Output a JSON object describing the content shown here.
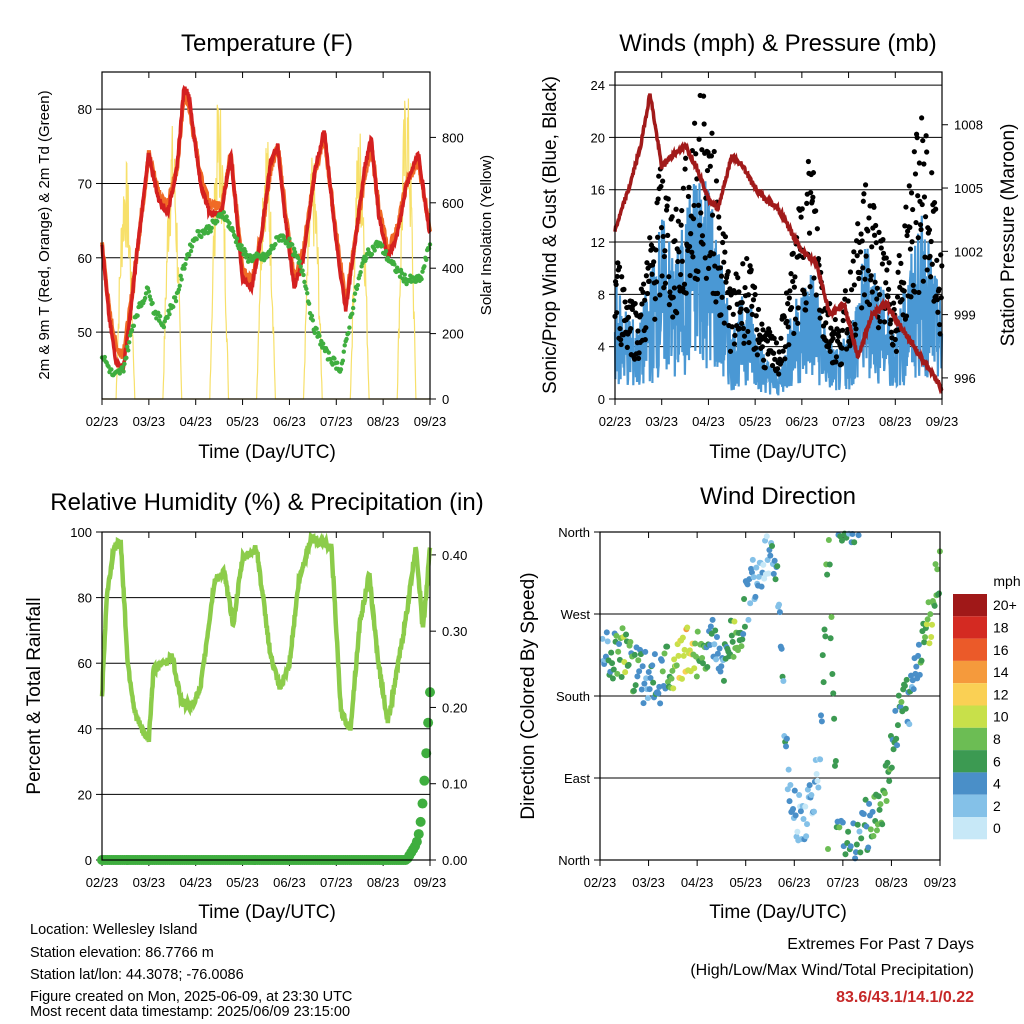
{
  "footer": {
    "location": "Location: Wellesley Island",
    "elevation": "Station elevation: 86.7766 m",
    "latlon": "Station lat/lon: 44.3078; -76.0086",
    "created": "Figure created on Mon, 2025-06-09, at 23:30 UTC",
    "latest": "Most recent data timestamp: 2025/06/09 23:15:00"
  },
  "extremes": {
    "title": "Extremes For Past 7 Days",
    "subtitle": "(High/Low/Max Wind/Total Precipitation)",
    "values": "83.6/43.1/14.1/0.22"
  },
  "colors": {
    "red": "#d42020",
    "orange": "#f06a25",
    "green": "#3fae3f",
    "yellow": "#f7e06a",
    "blue": "#4a98d4",
    "black": "#000000",
    "maroon": "#a11a1a",
    "rh_green": "#8ccc4a",
    "precip_green": "#3fae3f"
  },
  "chart_data": [
    {
      "type": "line",
      "title": "Temperature (F)",
      "xlabel": "Time (Day/UTC)",
      "ylabel": "2m & 9m T (Red, Orange) & 2m Td (Green)",
      "y2label": "Solar Insolation (Yellow)",
      "x_ticks": [
        "02/23",
        "03/23",
        "04/23",
        "05/23",
        "06/23",
        "07/23",
        "08/23",
        "09/23"
      ],
      "ylim": [
        41,
        85
      ],
      "y_ticks": [
        50,
        60,
        70,
        80
      ],
      "y2lim": [
        0,
        1000
      ],
      "y2_ticks": [
        0,
        200,
        400,
        600,
        800
      ],
      "grid": "horizontal",
      "series": [
        {
          "name": "2m T",
          "axis": "y",
          "x": [
            0,
            0.15,
            0.3,
            0.45,
            0.6,
            0.75,
            1.0,
            1.2,
            1.4,
            1.6,
            1.75,
            1.85,
            2.1,
            2.3,
            2.55,
            2.75,
            3.0,
            3.2,
            3.4,
            3.6,
            3.75,
            3.9,
            4.1,
            4.3,
            4.55,
            4.75,
            5.0,
            5.2,
            5.4,
            5.6,
            5.75,
            5.9,
            6.1,
            6.3,
            6.5,
            6.75,
            7.0
          ],
          "values": [
            62,
            52,
            46,
            45,
            52,
            61,
            74,
            68,
            66,
            72,
            83,
            82,
            70,
            66,
            66,
            74,
            57,
            56,
            63,
            73,
            75,
            66,
            56,
            60,
            72,
            77,
            62,
            53,
            62,
            72,
            76,
            66,
            60,
            63,
            70,
            74,
            63
          ]
        },
        {
          "name": "9m T",
          "axis": "y",
          "x": [
            0,
            0.15,
            0.3,
            0.45,
            0.6,
            0.75,
            1.0,
            1.2,
            1.4,
            1.6,
            1.75,
            1.85,
            2.1,
            2.3,
            2.55,
            2.75,
            3.0,
            3.2,
            3.4,
            3.6,
            3.75,
            3.9,
            4.1,
            4.3,
            4.55,
            4.75,
            5.0,
            5.2,
            5.4,
            5.6,
            5.75,
            5.9,
            6.1,
            6.3,
            6.5,
            6.75,
            7.0
          ],
          "values": [
            62,
            53,
            48,
            47,
            53,
            61,
            74,
            69,
            67,
            72,
            82,
            81,
            71,
            67,
            67,
            74,
            58,
            57,
            63,
            72,
            75,
            67,
            57,
            61,
            72,
            76,
            63,
            54,
            62,
            71,
            75,
            67,
            61,
            64,
            70,
            73,
            64
          ]
        },
        {
          "name": "2m Td",
          "axis": "y",
          "x": [
            0,
            0.25,
            0.45,
            0.7,
            1.0,
            1.1,
            1.3,
            1.6,
            1.8,
            2.0,
            2.3,
            2.6,
            2.9,
            3.1,
            3.5,
            3.8,
            4.0,
            4.3,
            4.5,
            4.8,
            5.1,
            5.4,
            5.6,
            5.9,
            6.2,
            6.5,
            6.8,
            7.0
          ],
          "values": [
            47,
            44,
            45,
            52,
            56,
            53,
            51,
            55,
            60,
            63,
            64,
            66,
            62,
            60,
            60,
            63,
            62,
            58,
            51,
            47,
            45,
            55,
            60,
            62,
            59,
            57,
            57,
            62
          ]
        },
        {
          "name": "Solar Insolation",
          "axis": "y2",
          "x": [
            0,
            0.25,
            0.5,
            0.75,
            1,
            1.25,
            1.5,
            1.75,
            2,
            2.25,
            2.5,
            2.75,
            3,
            3.25,
            3.5,
            3.75,
            4,
            4.25,
            4.5,
            4.75,
            5,
            5.25,
            5.5,
            5.75,
            6,
            6.25,
            6.5,
            6.75,
            7
          ],
          "values": [
            0,
            0,
            750,
            0,
            0,
            0,
            850,
            0,
            0,
            0,
            950,
            0,
            0,
            0,
            850,
            0,
            0,
            0,
            750,
            0,
            0,
            0,
            850,
            0,
            0,
            0,
            980,
            0,
            0
          ]
        }
      ]
    },
    {
      "type": "line",
      "title": "Winds (mph) & Pressure (mb)",
      "xlabel": "Time (Day/UTC)",
      "ylabel": "Sonic/Prop Wind & Gust (Blue, Black)",
      "y2label": "Station Pressure (Maroon)",
      "x_ticks": [
        "02/23",
        "03/23",
        "04/23",
        "05/23",
        "06/23",
        "07/23",
        "08/23",
        "09/23"
      ],
      "ylim": [
        0,
        25
      ],
      "y_ticks": [
        0,
        4,
        8,
        12,
        16,
        20,
        24
      ],
      "y2lim": [
        995,
        1010.5
      ],
      "y2_ticks": [
        996,
        999,
        1002,
        1005,
        1008
      ],
      "grid": "horizontal",
      "series": [
        {
          "name": "Wind",
          "axis": "y",
          "x": [
            0,
            0.5,
            1.0,
            1.3,
            1.6,
            1.9,
            2.2,
            2.5,
            2.8,
            3.2,
            3.5,
            3.8,
            4.2,
            4.5,
            4.8,
            5.1,
            5.4,
            5.7,
            6.0,
            6.3,
            6.6,
            7.0
          ],
          "values": [
            5,
            3,
            8,
            6,
            9,
            11,
            7,
            3,
            5,
            2,
            1,
            4,
            6,
            3,
            2,
            4,
            7,
            5,
            3,
            6,
            8,
            4
          ]
        },
        {
          "name": "Gust",
          "axis": "y",
          "x": [
            0,
            0.5,
            1.0,
            1.3,
            1.6,
            1.9,
            2.2,
            2.5,
            2.8,
            3.2,
            3.5,
            3.8,
            4.2,
            4.5,
            4.8,
            5.1,
            5.4,
            5.7,
            6.0,
            6.3,
            6.6,
            7.0
          ],
          "values": [
            8,
            5,
            13,
            10,
            14,
            17,
            12,
            6,
            8,
            4,
            3,
            8,
            14,
            6,
            4,
            8,
            12,
            9,
            6,
            12,
            16,
            7
          ]
        },
        {
          "name": "Station Pressure",
          "axis": "y2",
          "x": [
            0,
            0.3,
            0.55,
            0.75,
            1.0,
            1.2,
            1.5,
            1.75,
            2.0,
            2.2,
            2.5,
            2.75,
            3.0,
            3.2,
            3.5,
            3.75,
            4.0,
            4.3,
            4.6,
            4.9,
            5.2,
            5.5,
            5.8,
            6.1,
            6.4,
            6.7,
            7.0
          ],
          "values": [
            1003,
            1005,
            1007,
            1009.5,
            1006,
            1006.5,
            1007,
            1006,
            1004.5,
            1004,
            1006.5,
            1006,
            1005,
            1004.5,
            1004,
            1003,
            1002,
            1001.5,
            999,
            999.5,
            997,
            999,
            999.5,
            998.5,
            997.5,
            996.5,
            995.5
          ]
        }
      ]
    },
    {
      "type": "line",
      "title": "Relative Humidity (%) & Precipitation (in)",
      "xlabel": "Time (Day/UTC)",
      "ylabel": "Percent & Total Rainfall",
      "x_ticks": [
        "02/23",
        "03/23",
        "04/23",
        "05/23",
        "06/23",
        "07/23",
        "08/23",
        "09/23"
      ],
      "ylim": [
        0,
        100
      ],
      "y_ticks": [
        0,
        20,
        40,
        60,
        80,
        100
      ],
      "y2lim": [
        0,
        0.43
      ],
      "y2_ticks": [
        "0.00",
        "0.10",
        "0.20",
        "0.30",
        "0.40"
      ],
      "grid": "horizontal",
      "series": [
        {
          "name": "Relative Humidity",
          "axis": "y",
          "x": [
            0,
            0.1,
            0.25,
            0.4,
            0.55,
            0.7,
            0.9,
            1.0,
            1.1,
            1.3,
            1.5,
            1.7,
            1.9,
            2.1,
            2.4,
            2.6,
            2.8,
            3.0,
            3.3,
            3.6,
            3.8,
            4.0,
            4.2,
            4.45,
            4.7,
            4.9,
            5.1,
            5.3,
            5.5,
            5.7,
            5.9,
            6.1,
            6.3,
            6.5,
            6.7,
            6.85,
            7.0
          ],
          "values": [
            50,
            80,
            95,
            97,
            60,
            45,
            38,
            37,
            58,
            60,
            62,
            48,
            47,
            52,
            85,
            88,
            72,
            92,
            95,
            62,
            52,
            60,
            85,
            98,
            97,
            95,
            45,
            40,
            72,
            87,
            60,
            42,
            58,
            75,
            96,
            70,
            95
          ]
        },
        {
          "name": "Total Precipitation",
          "axis": "y2",
          "x": [
            0,
            6.5,
            6.6,
            6.7,
            6.75,
            6.8,
            6.85,
            6.9,
            6.95,
            7.0
          ],
          "values": [
            0,
            0,
            0.01,
            0.02,
            0.03,
            0.05,
            0.08,
            0.12,
            0.17,
            0.22
          ]
        }
      ]
    },
    {
      "type": "scatter",
      "title": "Wind Direction",
      "xlabel": "Time (Day/UTC)",
      "ylabel": "Direction (Colored By Speed)",
      "x_ticks": [
        "02/23",
        "03/23",
        "04/23",
        "05/23",
        "06/23",
        "07/23",
        "08/23",
        "09/23"
      ],
      "y_ticks": [
        "North",
        "East",
        "South",
        "West",
        "North"
      ],
      "ylim": [
        0,
        360
      ],
      "grid": "horizontal",
      "legend": {
        "title": "mph",
        "labels": [
          "0",
          "2",
          "4",
          "6",
          "8",
          "10",
          "12",
          "14",
          "16",
          "18",
          "20+"
        ],
        "colors": [
          "#c7e8f7",
          "#84c1e8",
          "#4a8fc8",
          "#3c9a52",
          "#6cbd54",
          "#c8e04a",
          "#fad054",
          "#f59a3c",
          "#eb5a29",
          "#d42a22",
          "#a01818"
        ]
      },
      "series": [
        {
          "name": "Direction",
          "x": [
            0.1,
            0.3,
            0.5,
            0.7,
            0.9,
            1.2,
            1.5,
            1.8,
            2.1,
            2.3,
            2.5,
            2.8,
            3.1,
            3.4,
            3.6,
            3.9,
            4.2,
            4.5,
            4.7,
            4.9,
            5.2,
            5.5,
            5.8,
            6.1,
            6.4,
            6.6,
            6.8,
            7.0
          ],
          "values": [
            235,
            225,
            230,
            210,
            200,
            195,
            215,
            230,
            230,
            240,
            220,
            240,
            300,
            330,
            340,
            60,
            40,
            90,
            350,
            20,
            15,
            40,
            60,
            150,
            180,
            230,
            270,
            320
          ],
          "speed": [
            3,
            5,
            8,
            6,
            4,
            5,
            8,
            12,
            6,
            5,
            4,
            8,
            3,
            2,
            4,
            3,
            2,
            2,
            8,
            6,
            4,
            5,
            7,
            6,
            4,
            6,
            10,
            7
          ]
        }
      ]
    }
  ]
}
